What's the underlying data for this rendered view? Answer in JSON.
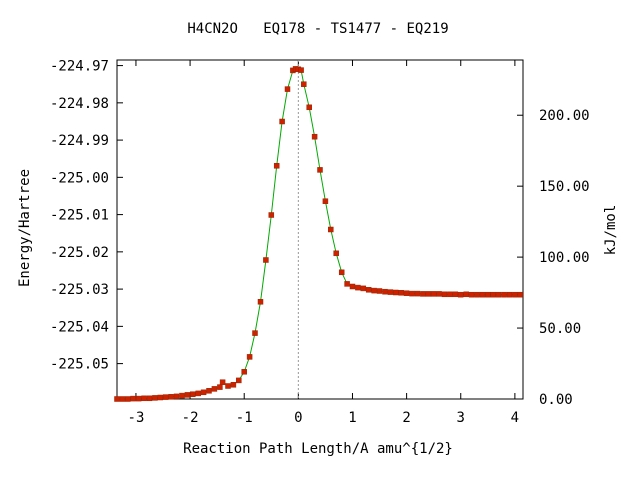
{
  "chart_data": {
    "type": "line",
    "title": "H4CN2O   EQ178 - TS1477 - EQ219",
    "xlabel": "Reaction Path Length/A amu^{1/2}",
    "ylabel": "Energy/Hartree",
    "y2label": "kJ/mol",
    "xlim": [
      -3.35,
      4.15
    ],
    "ylim": [
      -225.0595,
      -224.9685
    ],
    "x_ticks": [
      -3,
      -2,
      -1,
      0,
      1,
      2,
      3,
      4
    ],
    "y_ticks": [
      -224.97,
      -224.98,
      -224.99,
      -225.0,
      -225.01,
      -225.02,
      -225.03,
      -225.04,
      -225.05
    ],
    "y_tick_labels": [
      "-224.97",
      "-224.98",
      "-224.99",
      "-225.00",
      "-225.01",
      "-225.02",
      "-225.03",
      "-225.04",
      "-225.05"
    ],
    "y2_ticks": [
      0,
      50,
      100,
      150,
      200
    ],
    "y2_tick_labels": [
      "0.00",
      "50.00",
      "100.00",
      "150.00",
      "200.00"
    ],
    "y2_zero_hartree": -225.0595,
    "hartree_to_kj": 2625.5,
    "ts_marker_x": 0.0,
    "grid": false,
    "colors": {
      "line": "#00aa00",
      "marker": "#cc2200",
      "ts_line": "#999999"
    },
    "series": [
      {
        "x": [
          -3.35,
          -3.25,
          -3.15,
          -3.05,
          -2.95,
          -2.85,
          -2.75,
          -2.65,
          -2.55,
          -2.45,
          -2.35,
          -2.25,
          -2.15,
          -2.05,
          -1.95,
          -1.85,
          -1.75,
          -1.65,
          -1.55,
          -1.45,
          -1.4,
          -1.3,
          -1.2,
          -1.1,
          -1.0,
          -0.9,
          -0.8,
          -0.7,
          -0.6,
          -0.5,
          -0.4,
          -0.3,
          -0.2,
          -0.1,
          -0.05,
          0.0,
          0.05,
          0.1,
          0.2,
          0.3,
          0.4,
          0.5,
          0.6,
          0.7,
          0.8,
          0.9,
          1.0,
          1.1,
          1.2,
          1.3,
          1.4,
          1.5,
          1.6,
          1.7,
          1.8,
          1.9,
          2.0,
          2.1,
          2.2,
          2.3,
          2.4,
          2.5,
          2.6,
          2.7,
          2.8,
          2.9,
          3.0,
          3.1,
          3.2,
          3.3,
          3.4,
          3.5,
          3.6,
          3.7,
          3.8,
          3.9,
          4.0,
          4.1
        ],
        "y": [
          -225.0595,
          -225.0595,
          -225.0595,
          -225.0594,
          -225.0594,
          -225.0593,
          -225.0593,
          -225.0592,
          -225.0591,
          -225.059,
          -225.0589,
          -225.0588,
          -225.0586,
          -225.0584,
          -225.0582,
          -225.058,
          -225.0577,
          -225.0573,
          -225.0568,
          -225.0563,
          -225.055,
          -225.056,
          -225.0557,
          -225.0545,
          -225.0522,
          -225.0482,
          -225.0418,
          -225.0334,
          -225.0222,
          -225.0101,
          -224.9969,
          -224.985,
          -224.9763,
          -224.9713,
          -224.9709,
          -224.971,
          -224.9712,
          -224.975,
          -224.9812,
          -224.9891,
          -224.998,
          -225.0064,
          -225.014,
          -225.0204,
          -225.0255,
          -225.0286,
          -225.0293,
          -225.0296,
          -225.0298,
          -225.0302,
          -225.0304,
          -225.0305,
          -225.0307,
          -225.0308,
          -225.0309,
          -225.031,
          -225.0311,
          -225.0312,
          -225.0312,
          -225.0313,
          -225.0313,
          -225.0313,
          -225.0313,
          -225.0314,
          -225.0314,
          -225.0314,
          -225.0315,
          -225.0314,
          -225.0315,
          -225.0315,
          -225.0315,
          -225.0315,
          -225.0315,
          -225.0315,
          -225.0315,
          -225.0315,
          -225.0315,
          -225.0315
        ]
      }
    ]
  }
}
